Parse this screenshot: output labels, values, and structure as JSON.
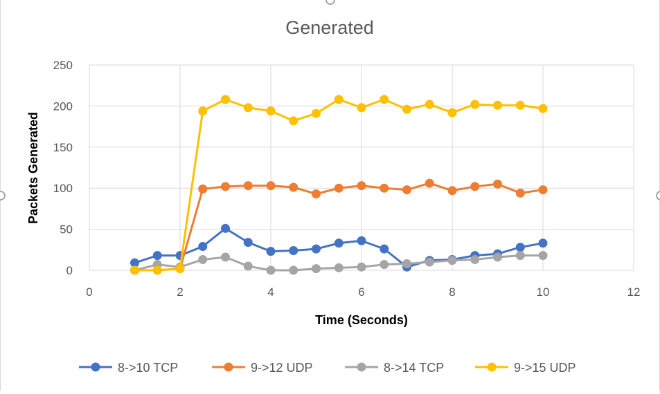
{
  "chart_data": {
    "type": "line",
    "title": "Generated",
    "xlabel": "Time (Seconds)",
    "ylabel": "Packets Generated",
    "xlim": [
      0,
      12
    ],
    "ylim": [
      0,
      250
    ],
    "xticks": [
      0,
      2,
      4,
      6,
      8,
      10,
      12
    ],
    "yticks": [
      0,
      50,
      100,
      150,
      200,
      250
    ],
    "grid": true,
    "legend_position": "bottom",
    "x": [
      1,
      1.5,
      2,
      2.5,
      3,
      3.5,
      4,
      4.5,
      5,
      5.5,
      6,
      6.5,
      7,
      7.5,
      8,
      8.5,
      9,
      9.5,
      10
    ],
    "series": [
      {
        "name": "8->10 TCP",
        "color": "#4472c4",
        "values": [
          9,
          18,
          18,
          29,
          51,
          34,
          23,
          24,
          26,
          33,
          36,
          26,
          4,
          12,
          13,
          18,
          20,
          28,
          33
        ]
      },
      {
        "name": "9->12 UDP",
        "color": "#ed7d31",
        "values": [
          0,
          0,
          2,
          99,
          102,
          103,
          103,
          101,
          93,
          100,
          103,
          100,
          98,
          106,
          97,
          102,
          105,
          94,
          98
        ]
      },
      {
        "name": "8->14 TCP",
        "color": "#a5a5a5",
        "values": [
          0,
          7,
          4,
          13,
          16,
          5,
          0,
          0,
          2,
          3,
          4,
          7,
          8,
          10,
          12,
          13,
          16,
          18,
          18
        ]
      },
      {
        "name": "9->15 UDP",
        "color": "#ffc000",
        "values": [
          0,
          0,
          2,
          194,
          208,
          198,
          194,
          182,
          191,
          208,
          198,
          208,
          196,
          202,
          192,
          202,
          201,
          201,
          197
        ]
      }
    ]
  }
}
